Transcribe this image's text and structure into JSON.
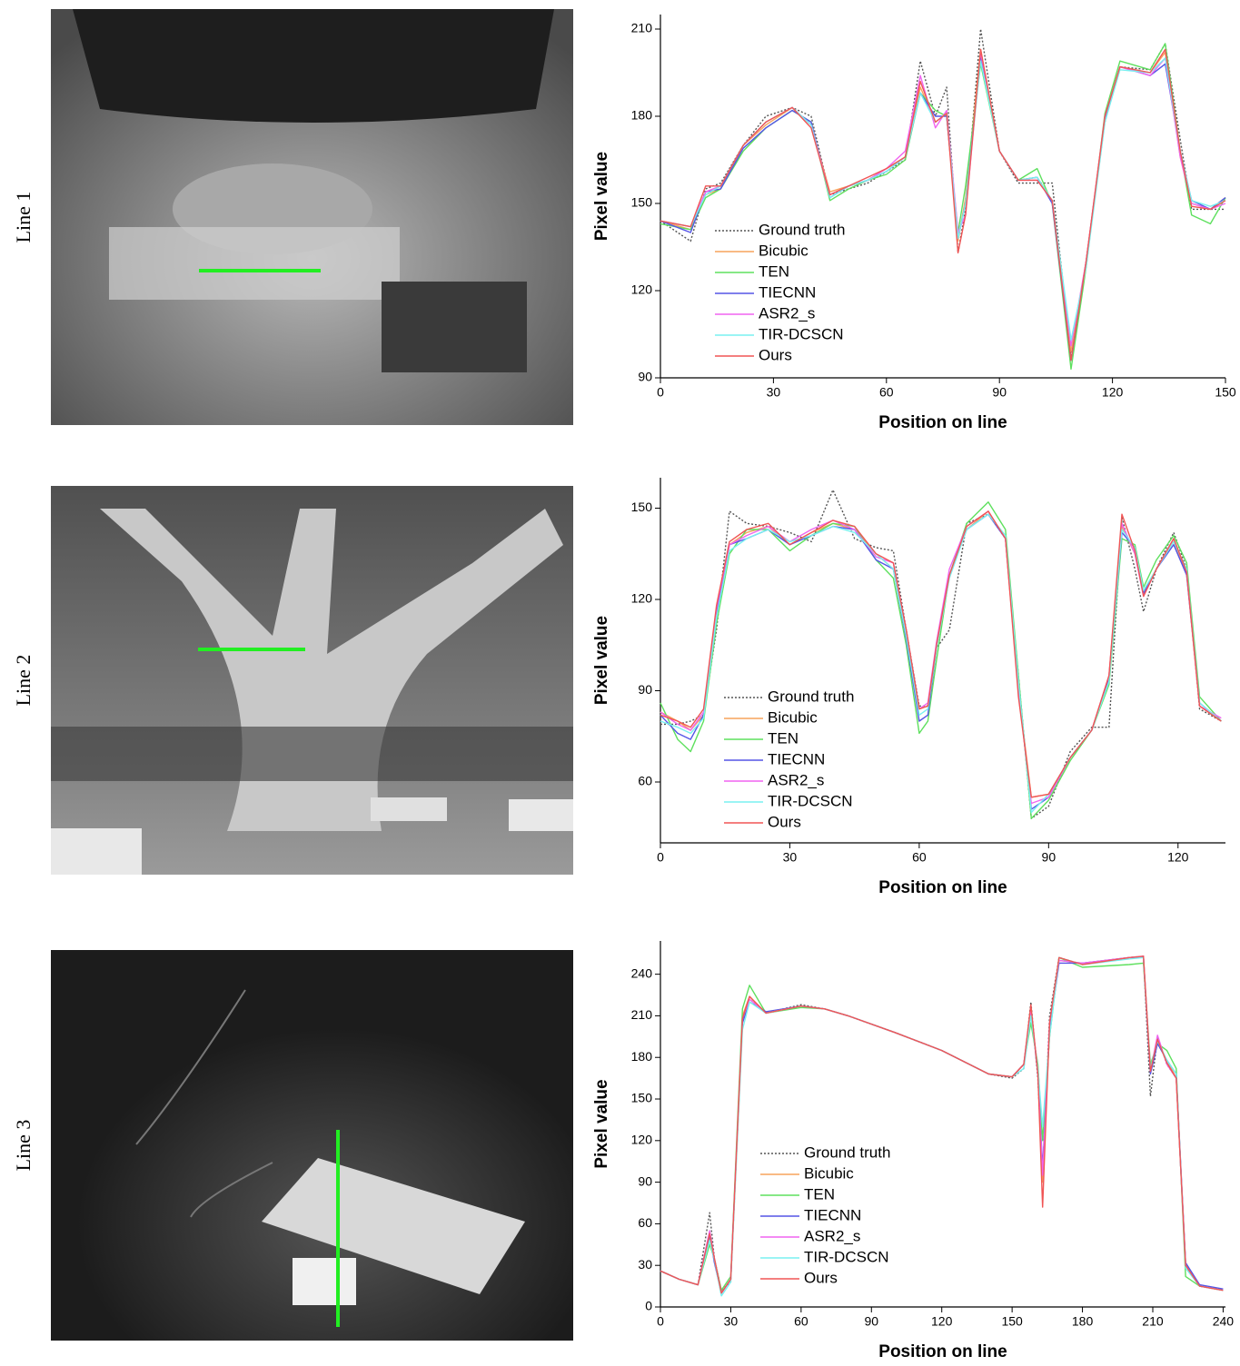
{
  "row_labels": [
    "Line 1",
    "Line 2",
    "Line 3"
  ],
  "chart_data": [
    {
      "type": "line",
      "x_label": "Position on line",
      "y_label": "Pixel value",
      "xlim": [
        0,
        150
      ],
      "ylim": [
        90,
        215
      ],
      "xticks": [
        0,
        30,
        60,
        90,
        120,
        150
      ],
      "yticks": [
        90,
        120,
        150,
        180,
        210
      ],
      "legend": "lower left",
      "x": [
        0,
        8,
        12,
        16,
        22,
        28,
        35,
        40,
        45,
        50,
        55,
        60,
        65,
        69,
        73,
        76,
        79,
        81,
        85,
        90,
        95,
        100,
        104,
        109,
        113,
        118,
        122,
        130,
        134,
        138,
        141,
        146,
        150
      ],
      "series": [
        {
          "name": "Ground truth",
          "color": "#555555",
          "style": "dotted",
          "values": [
            144,
            137,
            155,
            157,
            170,
            180,
            183,
            180,
            153,
            155,
            157,
            161,
            165,
            199,
            180,
            190,
            133,
            148,
            210,
            168,
            157,
            157,
            157,
            97,
            130,
            178,
            197,
            196,
            205,
            172,
            148,
            148,
            148
          ]
        },
        {
          "name": "Bicubic",
          "color": "#f7a35c",
          "style": "solid",
          "values": [
            144,
            141,
            153,
            155,
            170,
            177,
            183,
            177,
            154,
            156,
            158,
            162,
            166,
            190,
            178,
            181,
            137,
            152,
            203,
            168,
            158,
            159,
            151,
            99,
            130,
            179,
            197,
            195,
            202,
            166,
            150,
            148,
            152
          ]
        },
        {
          "name": "TEN",
          "color": "#5ee05e",
          "style": "solid",
          "values": [
            143,
            141,
            152,
            155,
            168,
            176,
            182,
            178,
            151,
            155,
            158,
            160,
            165,
            188,
            182,
            180,
            140,
            156,
            198,
            168,
            158,
            162,
            150,
            93,
            128,
            181,
            199,
            196,
            205,
            168,
            146,
            143,
            152
          ]
        },
        {
          "name": "TIECNN",
          "color": "#5555e6",
          "style": "solid",
          "values": [
            144,
            140,
            154,
            155,
            169,
            176,
            182,
            178,
            152,
            156,
            158,
            161,
            166,
            188,
            180,
            180,
            138,
            150,
            200,
            168,
            158,
            159,
            150,
            96,
            130,
            179,
            197,
            194,
            198,
            168,
            151,
            148,
            152
          ]
        },
        {
          "name": "ASR2_s",
          "color": "#f064f0",
          "style": "solid",
          "values": [
            144,
            142,
            154,
            156,
            170,
            178,
            183,
            177,
            153,
            156,
            158,
            162,
            168,
            194,
            176,
            182,
            140,
            146,
            202,
            168,
            158,
            158,
            151,
            101,
            130,
            180,
            197,
            194,
            200,
            166,
            150,
            148,
            150
          ]
        },
        {
          "name": "TIR-DCSCN",
          "color": "#78f0f0",
          "style": "solid",
          "values": [
            144,
            142,
            153,
            156,
            170,
            178,
            183,
            177,
            152,
            156,
            158,
            161,
            166,
            188,
            178,
            181,
            138,
            150,
            199,
            168,
            158,
            159,
            151,
            103,
            128,
            178,
            196,
            195,
            200,
            168,
            151,
            149,
            151
          ]
        },
        {
          "name": "Ours",
          "color": "#f05555",
          "style": "solid",
          "values": [
            144,
            142,
            156,
            156,
            170,
            178,
            183,
            176,
            153,
            156,
            159,
            162,
            166,
            192,
            178,
            181,
            133,
            146,
            203,
            168,
            158,
            158,
            151,
            96,
            130,
            180,
            197,
            195,
            203,
            168,
            149,
            148,
            151
          ]
        }
      ]
    },
    {
      "type": "line",
      "x_label": "Position on line",
      "y_label": "Pixel value",
      "xlim": [
        0,
        131
      ],
      "ylim": [
        40,
        160
      ],
      "xticks": [
        0,
        30,
        60,
        90,
        120
      ],
      "yticks": [
        60,
        90,
        120,
        150
      ],
      "legend": "lower left",
      "x": [
        0,
        4,
        7,
        10,
        13,
        16,
        20,
        25,
        30,
        35,
        40,
        45,
        50,
        54,
        57,
        60,
        62,
        64,
        67,
        71,
        76,
        80,
        83,
        86,
        90,
        95,
        100,
        104,
        107,
        110,
        112,
        115,
        119,
        122,
        125,
        130
      ],
      "series": [
        {
          "name": "Ground truth",
          "color": "#555555",
          "style": "dotted",
          "values": [
            79,
            79,
            80,
            82,
            110,
            149,
            145,
            144,
            142,
            139,
            156,
            140,
            137,
            136,
            110,
            85,
            85,
            104,
            110,
            145,
            148,
            140,
            95,
            48,
            52,
            70,
            78,
            78,
            147,
            130,
            116,
            130,
            142,
            130,
            84,
            80
          ]
        },
        {
          "name": "Bicubic",
          "color": "#f7a35c",
          "style": "solid",
          "values": [
            83,
            80,
            77,
            82,
            115,
            138,
            142,
            144,
            138,
            142,
            145,
            143,
            135,
            130,
            110,
            84,
            85,
            105,
            128,
            143,
            149,
            140,
            90,
            55,
            56,
            68,
            77,
            95,
            144,
            135,
            122,
            130,
            139,
            128,
            85,
            80
          ]
        },
        {
          "name": "TEN",
          "color": "#5ee05e",
          "style": "solid",
          "values": [
            86,
            74,
            70,
            80,
            112,
            135,
            143,
            143,
            136,
            141,
            145,
            144,
            133,
            127,
            105,
            76,
            80,
            100,
            128,
            145,
            152,
            143,
            95,
            48,
            54,
            67,
            77,
            92,
            140,
            138,
            124,
            133,
            141,
            132,
            88,
            80
          ]
        },
        {
          "name": "TIECNN",
          "color": "#5555e6",
          "style": "solid",
          "values": [
            82,
            76,
            74,
            82,
            116,
            138,
            140,
            143,
            138,
            141,
            144,
            143,
            133,
            130,
            107,
            80,
            82,
            104,
            128,
            143,
            148,
            140,
            92,
            51,
            55,
            68,
            77,
            94,
            142,
            137,
            122,
            130,
            138,
            128,
            86,
            80
          ]
        },
        {
          "name": "ASR2_s",
          "color": "#f064f0",
          "style": "solid",
          "values": [
            83,
            79,
            77,
            83,
            117,
            138,
            141,
            144,
            139,
            143,
            146,
            143,
            134,
            132,
            110,
            84,
            86,
            106,
            130,
            144,
            149,
            140,
            90,
            53,
            55,
            68,
            77,
            95,
            145,
            135,
            121,
            130,
            140,
            129,
            85,
            81
          ]
        },
        {
          "name": "TIR-DCSCN",
          "color": "#78f0f0",
          "style": "solid",
          "values": [
            80,
            78,
            76,
            81,
            114,
            136,
            140,
            143,
            139,
            141,
            144,
            142,
            135,
            130,
            108,
            82,
            84,
            104,
            127,
            143,
            148,
            141,
            93,
            50,
            56,
            68,
            77,
            93,
            143,
            137,
            123,
            130,
            139,
            130,
            86,
            80
          ]
        },
        {
          "name": "Ours",
          "color": "#f05555",
          "style": "solid",
          "values": [
            82,
            80,
            78,
            84,
            118,
            139,
            143,
            145,
            138,
            142,
            146,
            144,
            135,
            132,
            110,
            84,
            85,
            105,
            128,
            144,
            149,
            140,
            88,
            55,
            56,
            68,
            77,
            95,
            148,
            136,
            121,
            130,
            140,
            129,
            85,
            80
          ]
        }
      ]
    },
    {
      "type": "line",
      "x_label": "Position on line",
      "y_label": "Pixel value",
      "xlim": [
        0,
        241
      ],
      "ylim": [
        0,
        264
      ],
      "xticks": [
        0,
        30,
        60,
        90,
        120,
        150,
        180,
        210,
        240
      ],
      "yticks": [
        0,
        30,
        60,
        90,
        120,
        150,
        180,
        210,
        240
      ],
      "legend": "lower left",
      "x": [
        0,
        8,
        16,
        21,
        23,
        26,
        30,
        35,
        38,
        45,
        60,
        70,
        80,
        100,
        120,
        140,
        150,
        155,
        158,
        161,
        163,
        166,
        170,
        180,
        200,
        206,
        209,
        212,
        216,
        220,
        224,
        230,
        240
      ],
      "series": [
        {
          "name": "Ground truth",
          "color": "#555555",
          "style": "dotted",
          "values": [
            26,
            20,
            16,
            68,
            35,
            12,
            18,
            205,
            222,
            212,
            218,
            215,
            210,
            198,
            185,
            168,
            165,
            172,
            220,
            165,
            95,
            210,
            252,
            247,
            252,
            253,
            152,
            195,
            175,
            165,
            30,
            15,
            12
          ]
        },
        {
          "name": "Bicubic",
          "color": "#f7a35c",
          "style": "solid",
          "values": [
            26,
            20,
            16,
            50,
            35,
            10,
            20,
            210,
            224,
            212,
            217,
            215,
            210,
            198,
            185,
            168,
            166,
            175,
            212,
            170,
            90,
            200,
            250,
            248,
            252,
            252,
            170,
            192,
            178,
            165,
            32,
            15,
            12
          ]
        },
        {
          "name": "TEN",
          "color": "#5ee05e",
          "style": "solid",
          "values": [
            26,
            20,
            16,
            45,
            35,
            12,
            22,
            215,
            232,
            212,
            216,
            215,
            210,
            198,
            185,
            168,
            166,
            175,
            205,
            175,
            120,
            195,
            252,
            245,
            247,
            248,
            175,
            190,
            185,
            172,
            22,
            15,
            12
          ]
        },
        {
          "name": "TIECNN",
          "color": "#5555e6",
          "style": "solid",
          "values": [
            26,
            20,
            16,
            52,
            32,
            10,
            20,
            205,
            220,
            213,
            217,
            215,
            210,
            198,
            185,
            168,
            166,
            175,
            215,
            168,
            100,
            200,
            248,
            248,
            252,
            252,
            168,
            190,
            178,
            168,
            32,
            16,
            13
          ]
        },
        {
          "name": "ASR2_s",
          "color": "#f064f0",
          "style": "solid",
          "values": [
            26,
            20,
            16,
            55,
            35,
            10,
            20,
            208,
            222,
            212,
            217,
            215,
            210,
            198,
            185,
            168,
            166,
            175,
            215,
            170,
            95,
            205,
            250,
            248,
            252,
            253,
            170,
            196,
            175,
            165,
            30,
            15,
            12
          ]
        },
        {
          "name": "TIR-DCSCN",
          "color": "#78f0f0",
          "style": "solid",
          "values": [
            26,
            20,
            16,
            48,
            34,
            8,
            18,
            200,
            220,
            212,
            217,
            215,
            210,
            198,
            185,
            168,
            166,
            172,
            210,
            172,
            130,
            195,
            252,
            247,
            251,
            252,
            172,
            192,
            178,
            168,
            28,
            15,
            12
          ]
        },
        {
          "name": "Ours",
          "color": "#f05555",
          "style": "solid",
          "values": [
            26,
            20,
            16,
            53,
            35,
            10,
            20,
            208,
            224,
            212,
            217,
            215,
            210,
            198,
            185,
            168,
            166,
            175,
            218,
            168,
            72,
            205,
            252,
            247,
            252,
            253,
            170,
            193,
            176,
            165,
            30,
            15,
            12
          ]
        }
      ]
    }
  ]
}
